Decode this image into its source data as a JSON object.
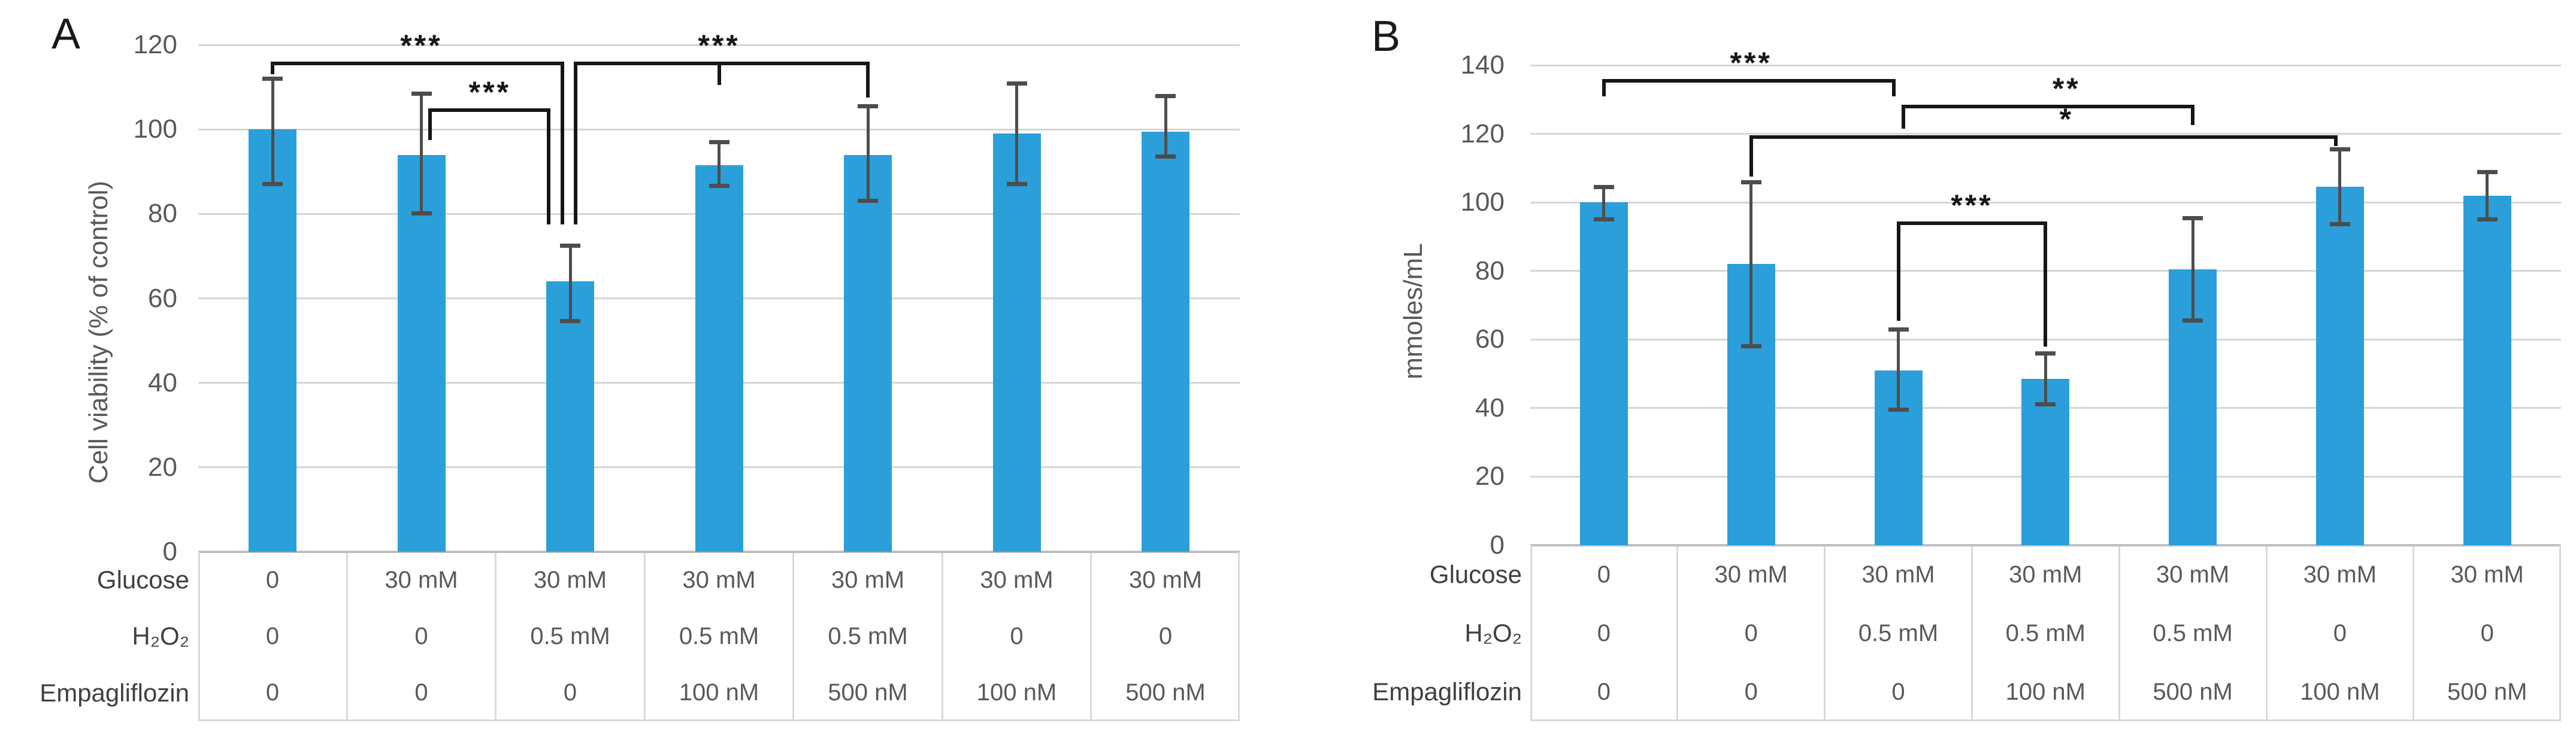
{
  "figure": {
    "background": "#ffffff",
    "panel_labels": [
      "A",
      "B"
    ]
  },
  "chart_data": [
    {
      "type": "bar",
      "panel": "A",
      "title": "",
      "xlabel": "",
      "ylabel": "Cell viability (% of control)",
      "ylim": [
        0,
        120
      ],
      "y_ticks": [
        0,
        20,
        40,
        60,
        80,
        100,
        120
      ],
      "grid": true,
      "legend": false,
      "bar_color": "#2b9fd9",
      "error_bar_color": "#4d4d4d",
      "n_groups": 7,
      "values": [
        100,
        94,
        64,
        91.5,
        94,
        99,
        99.5
      ],
      "error_low": [
        87,
        80,
        54.5,
        86.5,
        83,
        87,
        93.5
      ],
      "error_high": [
        112,
        108.5,
        72.5,
        97,
        105.5,
        111,
        108
      ],
      "significance": [
        {
          "between_groups": [
            1,
            3
          ],
          "label": "***"
        },
        {
          "between_groups": [
            2,
            3
          ],
          "label": "***"
        },
        {
          "between_groups": [
            3,
            5
          ],
          "label": "***"
        }
      ],
      "condition_table": {
        "row_headers": [
          "Glucose",
          "H₂O₂",
          "Empagliflozin"
        ],
        "rows": [
          [
            "0",
            "30 mM",
            "30 mM",
            "30 mM",
            "30 mM",
            "30 mM",
            "30 mM"
          ],
          [
            "0",
            "0",
            "0.5 mM",
            "0.5 mM",
            "0.5 mM",
            "0",
            "0"
          ],
          [
            "0",
            "0",
            "0",
            "100 nM",
            "500 nM",
            "100 nM",
            "500 nM"
          ]
        ]
      }
    },
    {
      "type": "bar",
      "panel": "B",
      "title": "",
      "xlabel": "",
      "ylabel": "mmoles/mL",
      "ylim": [
        0,
        140
      ],
      "y_ticks": [
        0,
        20,
        40,
        60,
        80,
        100,
        120,
        140
      ],
      "grid": true,
      "legend": false,
      "bar_color": "#2b9fd9",
      "error_bar_color": "#4d4d4d",
      "n_groups": 7,
      "values": [
        100,
        82,
        51,
        48.5,
        80.5,
        104.5,
        102
      ],
      "error_low": [
        95,
        58,
        39.5,
        41,
        65.5,
        93.5,
        95
      ],
      "error_high": [
        104.5,
        106,
        63,
        56,
        95.5,
        115.5,
        109
      ],
      "significance": [
        {
          "between_groups": [
            1,
            3
          ],
          "label": "***"
        },
        {
          "between_groups": [
            3,
            5
          ],
          "label": "**"
        },
        {
          "between_groups": [
            2,
            6
          ],
          "label": "*"
        },
        {
          "between_groups": [
            3,
            4
          ],
          "label": "***"
        }
      ],
      "condition_table": {
        "row_headers": [
          "Glucose",
          "H₂O₂",
          "Empagliflozin"
        ],
        "rows": [
          [
            "0",
            "30 mM",
            "30 mM",
            "30 mM",
            "30 mM",
            "30 mM",
            "30 mM"
          ],
          [
            "0",
            "0",
            "0.5 mM",
            "0.5 mM",
            "0.5 mM",
            "0",
            "0"
          ],
          [
            "0",
            "0",
            "0",
            "100 nM",
            "500 nM",
            "100 nM",
            "500 nM"
          ]
        ]
      }
    }
  ]
}
